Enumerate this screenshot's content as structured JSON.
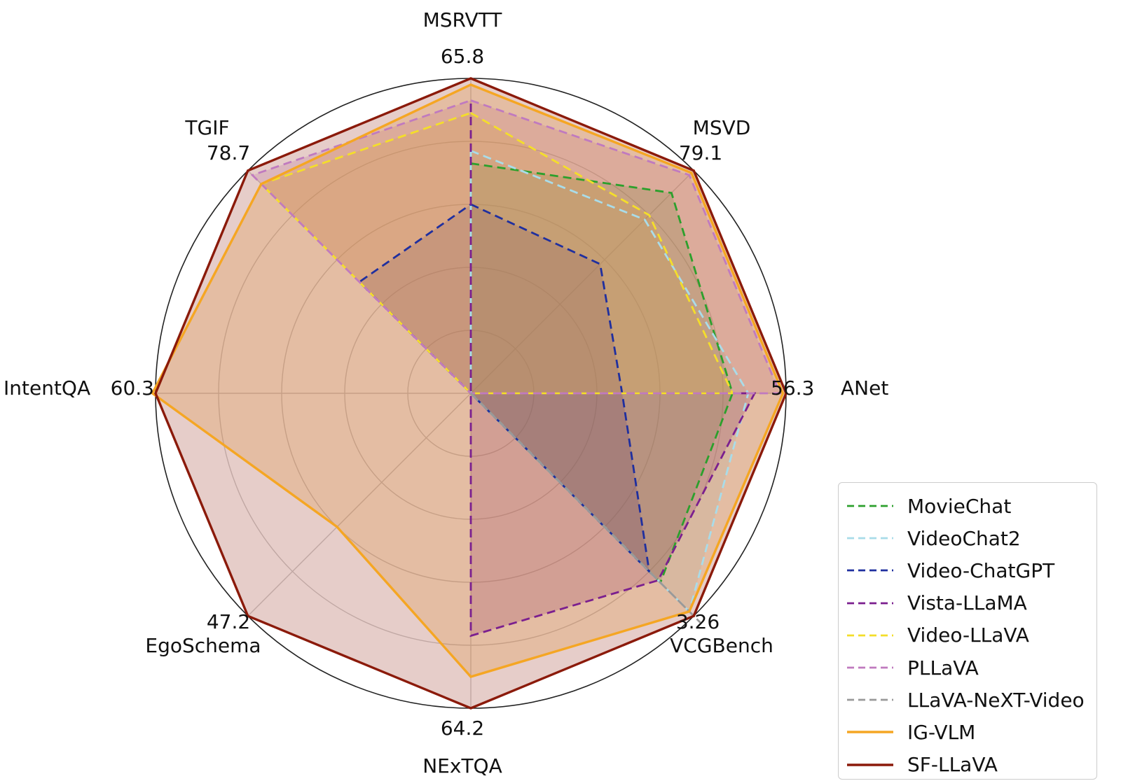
{
  "chart_data": {
    "type": "radar",
    "title": "",
    "axes": [
      {
        "name": "MSRVTT",
        "max_label": "65.8"
      },
      {
        "name": "MSVD",
        "max_label": "79.1"
      },
      {
        "name": "ANet",
        "max_label": "56.3"
      },
      {
        "name": "VCGBench",
        "max_label": "3.26"
      },
      {
        "name": "NExTQA",
        "max_label": "64.2"
      },
      {
        "name": "EgoSchema",
        "max_label": "47.2"
      },
      {
        "name": "IntentQA",
        "max_label": "60.3"
      },
      {
        "name": "TGIF",
        "max_label": "78.7"
      }
    ],
    "radial_grid": [
      0.2,
      0.4,
      0.6,
      0.8,
      1.0
    ],
    "values_unit": "fraction of axis maximum",
    "series": [
      {
        "name": "MovieChat",
        "color": "#2ca02c",
        "style": "dashed",
        "filled": true,
        "values": [
          0.73,
          0.9,
          0.83,
          0.85,
          0.0,
          0.0,
          0.0,
          0.0
        ]
      },
      {
        "name": "VideoChat2",
        "color": "#a9dce9",
        "style": "dashed",
        "filled": true,
        "values": [
          0.77,
          0.78,
          0.88,
          0.98,
          0.0,
          0.0,
          0.0,
          0.0
        ]
      },
      {
        "name": "Video-ChatGPT",
        "color": "#1f2f9f",
        "style": "dashed",
        "filled": true,
        "values": [
          0.6,
          0.58,
          0.48,
          0.8,
          0.0,
          0.0,
          0.0,
          0.5
        ]
      },
      {
        "name": "Vista-LLaMA",
        "color": "#7b1f8f",
        "style": "dashed",
        "filled": true,
        "values": [
          0.92,
          0.0,
          0.9,
          0.84,
          0.77,
          0.0,
          0.0,
          0.0
        ]
      },
      {
        "name": "Video-LLaVA",
        "color": "#f4de2a",
        "style": "dashed",
        "filled": true,
        "values": [
          0.89,
          0.8,
          0.83,
          0.0,
          0.0,
          0.0,
          0.0,
          0.94
        ]
      },
      {
        "name": "PLLaVA",
        "color": "#c07abf",
        "style": "dashed",
        "filled": true,
        "values": [
          0.93,
          0.98,
          0.98,
          0.0,
          0.0,
          0.0,
          0.0,
          0.98
        ]
      },
      {
        "name": "LLaVA-NeXT-Video",
        "color": "#999999",
        "style": "dashed",
        "filled": true,
        "values": [
          0.0,
          0.0,
          0.0,
          1.03,
          0.0,
          0.0,
          0.0,
          0.0
        ]
      },
      {
        "name": "IG-VLM",
        "color": "#f5a623",
        "style": "solid",
        "filled": true,
        "values": [
          0.98,
          0.99,
          0.99,
          0.98,
          0.9,
          0.6,
          1.01,
          0.94
        ]
      },
      {
        "name": "SF-LLaVA",
        "color": "#8b1a0a",
        "style": "solid",
        "filled": true,
        "values": [
          1.0,
          1.0,
          1.0,
          1.0,
          1.0,
          1.0,
          1.0,
          1.0
        ]
      }
    ],
    "legend_position": "lower-right"
  }
}
